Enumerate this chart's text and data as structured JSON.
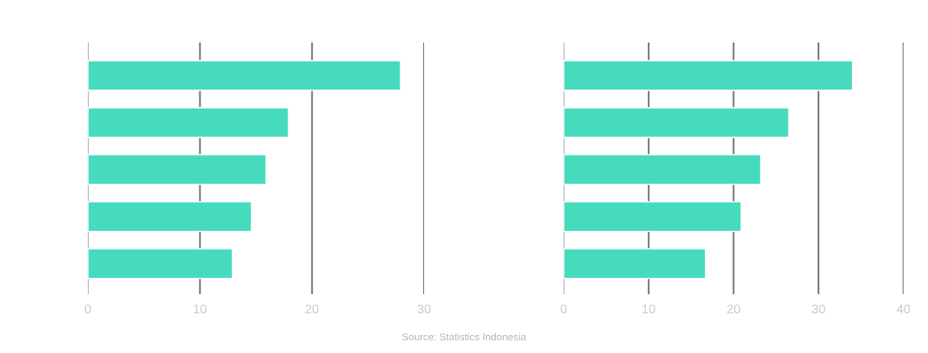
{
  "chart_data": [
    {
      "type": "bar",
      "orientation": "horizontal",
      "categories": [
        null,
        null,
        null,
        null,
        null
      ],
      "values": [
        27.9,
        17.9,
        15.9,
        14.6,
        12.9
      ],
      "color": "#47dbbd",
      "xlim": [
        0,
        30
      ],
      "xticks": [
        0,
        10,
        20,
        30
      ],
      "grid": "x",
      "tick_labels": "x",
      "annotations": [
        "Source: Statistics Indonesia"
      ]
    },
    {
      "type": "bar",
      "orientation": "horizontal",
      "categories": [
        null,
        null,
        null,
        null,
        null
      ],
      "values": [
        34.0,
        26.5,
        23.2,
        20.9,
        16.7
      ],
      "color": "#47dbbd",
      "xlim": [
        0,
        40
      ],
      "xticks": [
        0,
        10,
        20,
        30,
        40
      ],
      "grid": "x",
      "tick_labels": "x"
    }
  ]
}
